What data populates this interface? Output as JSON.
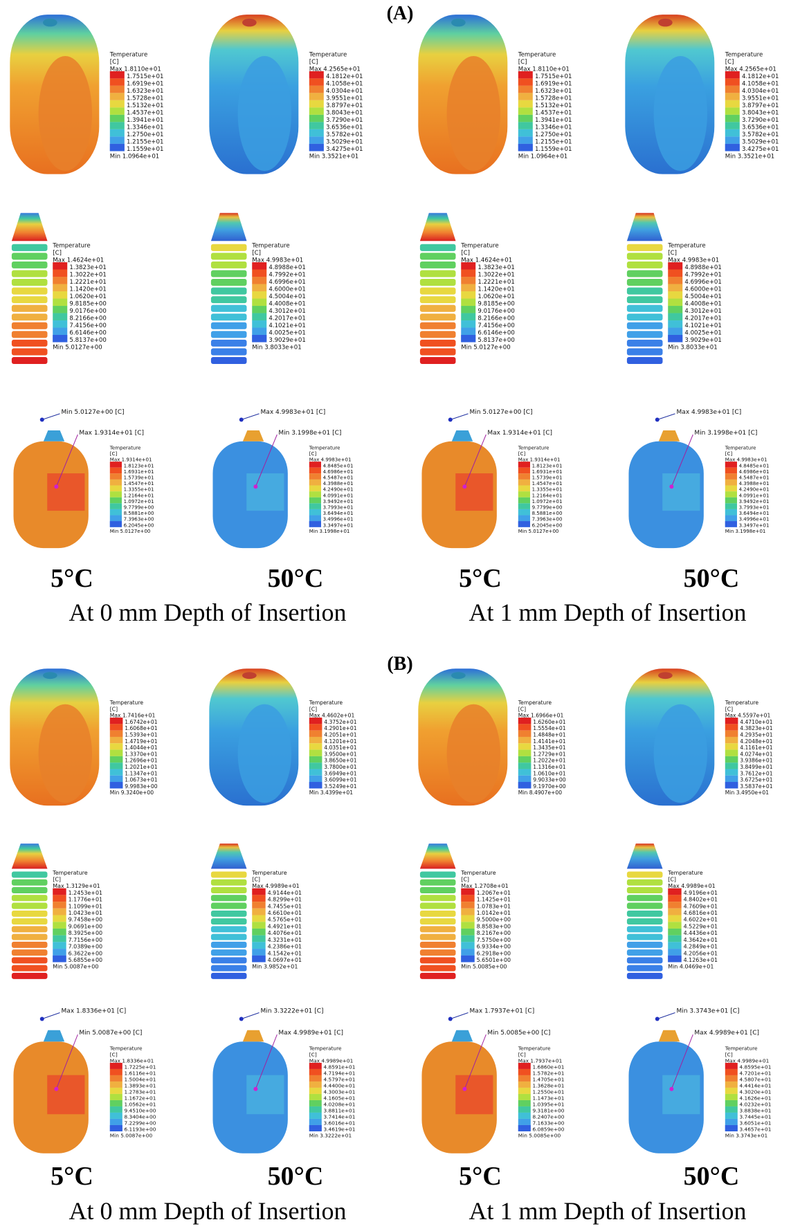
{
  "sections": [
    {
      "label": "(A)",
      "temps": [
        "5°C",
        "50°C",
        "5°C",
        "50°C"
      ],
      "depths": [
        "At 0 mm Depth of Insertion",
        "At 1 mm Depth of Insertion"
      ],
      "panels": [
        {
          "shape": "block",
          "legend": {
            "title": "Temperature",
            "unit": "[C]",
            "max": "Max 1.8110e+01",
            "values": [
              "1.7515e+01",
              "1.6919e+01",
              "1.6323e+01",
              "1.5728e+01",
              "1.5132e+01",
              "1.4537e+01",
              "1.3941e+01",
              "1.3346e+01",
              "1.2750e+01",
              "1.2155e+01",
              "1.1559e+01"
            ],
            "min": "Min 1.0964e+01"
          }
        },
        {
          "shape": "block",
          "legend": {
            "title": "Temperature",
            "unit": "[C]",
            "max": "Max 4.2565e+01",
            "values": [
              "4.1812e+01",
              "4.1058e+01",
              "4.0304e+01",
              "3.9551e+01",
              "3.8797e+01",
              "3.8043e+01",
              "3.7290e+01",
              "3.6536e+01",
              "3.5782e+01",
              "3.5029e+01",
              "3.4275e+01"
            ],
            "min": "Min 3.3521e+01"
          }
        },
        {
          "shape": "block",
          "legend": {
            "title": "Temperature",
            "unit": "[C]",
            "max": "Max 1.8110e+01",
            "values": [
              "1.7515e+01",
              "1.6919e+01",
              "1.6323e+01",
              "1.5728e+01",
              "1.5132e+01",
              "1.4537e+01",
              "1.3941e+01",
              "1.3346e+01",
              "1.2750e+01",
              "1.2155e+01",
              "1.1559e+01"
            ],
            "min": "Min 1.0964e+01"
          }
        },
        {
          "shape": "block",
          "legend": {
            "title": "Temperature",
            "unit": "[C]",
            "max": "Max 4.2565e+01",
            "values": [
              "4.1812e+01",
              "4.1058e+01",
              "4.0304e+01",
              "3.9551e+01",
              "3.8797e+01",
              "3.8043e+01",
              "3.7290e+01",
              "3.6536e+01",
              "3.5782e+01",
              "3.5029e+01",
              "3.4275e+01"
            ],
            "min": "Min 3.3521e+01"
          }
        },
        {
          "shape": "implant",
          "legend": {
            "title": "Temperature",
            "unit": "[C]",
            "max": "Max 1.4624e+01",
            "values": [
              "1.3823e+01",
              "1.3022e+01",
              "1.2221e+01",
              "1.1420e+01",
              "1.0620e+01",
              "9.8185e+00",
              "9.0176e+00",
              "8.2166e+00",
              "7.4156e+00",
              "6.6146e+00",
              "5.8137e+00"
            ],
            "min": "Min 5.0127e+00"
          }
        },
        {
          "shape": "implant",
          "legend": {
            "title": "Temperature",
            "unit": "[C]",
            "max": "Max 4.9983e+01",
            "values": [
              "4.8988e+01",
              "4.7992e+01",
              "4.6996e+01",
              "4.6000e+01",
              "4.5004e+01",
              "4.4008e+01",
              "4.3012e+01",
              "4.2017e+01",
              "4.1021e+01",
              "4.0025e+01",
              "3.9029e+01"
            ],
            "min": "Min 3.8033e+01"
          }
        },
        {
          "shape": "implant",
          "legend": {
            "title": "Temperature",
            "unit": "[C]",
            "max": "Max 1.4624e+01",
            "values": [
              "1.3823e+01",
              "1.3022e+01",
              "1.2221e+01",
              "1.1420e+01",
              "1.0620e+01",
              "9.8185e+00",
              "9.0176e+00",
              "8.2166e+00",
              "7.4156e+00",
              "6.6146e+00",
              "5.8137e+00"
            ],
            "min": "Min 5.0127e+00"
          }
        },
        {
          "shape": "implant",
          "legend": {
            "title": "Temperature",
            "unit": "[C]",
            "max": "Max 4.9983e+01",
            "values": [
              "4.8988e+01",
              "4.7992e+01",
              "4.6996e+01",
              "4.6000e+01",
              "4.5004e+01",
              "4.4008e+01",
              "4.3012e+01",
              "4.2017e+01",
              "4.1021e+01",
              "4.0025e+01",
              "3.9029e+01"
            ],
            "min": "Min 3.8033e+01"
          }
        },
        {
          "shape": "assembly",
          "callouts": [
            "Min 5.0127e+00 [C]",
            "Max 1.9314e+01 [C]"
          ],
          "legend": {
            "title": "Temperature",
            "unit": "[C]",
            "max": "Max 1.9314e+01",
            "values": [
              "1.8123e+01",
              "1.6931e+01",
              "1.5739e+01",
              "1.4547e+01",
              "1.3355e+01",
              "1.2164e+01",
              "1.0972e+01",
              "9.7799e+00",
              "8.5881e+00",
              "7.3963e+00",
              "6.2045e+00"
            ],
            "min": "Min 5.0127e+00"
          }
        },
        {
          "shape": "assembly",
          "callouts": [
            "Max 4.9983e+01 [C]",
            "Min 3.1998e+01 [C]"
          ],
          "legend": {
            "title": "Temperature",
            "unit": "[C]",
            "max": "Max 4.9983e+01",
            "values": [
              "4.8485e+01",
              "4.6986e+01",
              "4.5487e+01",
              "4.3988e+01",
              "4.2490e+01",
              "4.0991e+01",
              "3.9492e+01",
              "3.7993e+01",
              "3.6494e+01",
              "3.4996e+01",
              "3.3497e+01"
            ],
            "min": "Min 3.1998e+01"
          }
        },
        {
          "shape": "assembly",
          "callouts": [
            "Min 5.0127e+00 [C]",
            "Max 1.9314e+01 [C]"
          ],
          "legend": {
            "title": "Temperature",
            "unit": "[C]",
            "max": "Max 1.9314e+01",
            "values": [
              "1.8123e+01",
              "1.6931e+01",
              "1.5739e+01",
              "1.4547e+01",
              "1.3355e+01",
              "1.2164e+01",
              "1.0972e+01",
              "9.7799e+00",
              "8.5881e+00",
              "7.3963e+00",
              "6.2045e+00"
            ],
            "min": "Min 5.0127e+00"
          }
        },
        {
          "shape": "assembly",
          "callouts": [
            "Max 4.9983e+01 [C]",
            "Min 3.1998e+01 [C]"
          ],
          "legend": {
            "title": "Temperature",
            "unit": "[C]",
            "max": "Max 4.9983e+01",
            "values": [
              "4.8485e+01",
              "4.6986e+01",
              "4.5487e+01",
              "4.3988e+01",
              "4.2490e+01",
              "4.0991e+01",
              "3.9492e+01",
              "3.7993e+01",
              "3.6494e+01",
              "3.4996e+01",
              "3.3497e+01"
            ],
            "min": "Min 3.1998e+01"
          }
        }
      ]
    },
    {
      "label": "(B)",
      "temps": [
        "5°C",
        "50°C",
        "5°C",
        "50°C"
      ],
      "depths": [
        "At 0 mm Depth of Insertion",
        "At 1 mm Depth of Insertion"
      ],
      "panels": [
        {
          "shape": "block",
          "legend": {
            "title": "Temperature",
            "unit": "[C]",
            "max": "Max 1.7416e+01",
            "values": [
              "1.6742e+01",
              "1.6068e+01",
              "1.5393e+01",
              "1.4719e+01",
              "1.4044e+01",
              "1.3370e+01",
              "1.2696e+01",
              "1.2021e+01",
              "1.1347e+01",
              "1.0673e+01",
              "9.9983e+00"
            ],
            "min": "Min 9.3240e+00"
          }
        },
        {
          "shape": "block",
          "legend": {
            "title": "Temperature",
            "unit": "[C]",
            "max": "Max 4.4602e+01",
            "values": [
              "4.3752e+01",
              "4.2901e+01",
              "4.2051e+01",
              "4.1201e+01",
              "4.0351e+01",
              "3.9500e+01",
              "3.8650e+01",
              "3.7800e+01",
              "3.6949e+01",
              "3.6099e+01",
              "3.5249e+01"
            ],
            "min": "Min 3.4399e+01"
          }
        },
        {
          "shape": "block",
          "legend": {
            "title": "Temperature",
            "unit": "[C]",
            "max": "Max 1.6966e+01",
            "values": [
              "1.6260e+01",
              "1.5554e+01",
              "1.4848e+01",
              "1.4141e+01",
              "1.3435e+01",
              "1.2729e+01",
              "1.2022e+01",
              "1.1316e+01",
              "1.0610e+01",
              "9.9033e+00",
              "9.1970e+00"
            ],
            "min": "Min 8.4907e+00"
          }
        },
        {
          "shape": "block",
          "legend": {
            "title": "Temperature",
            "unit": "[C]",
            "max": "Max 4.5597e+01",
            "values": [
              "4.4710e+01",
              "4.3823e+01",
              "4.2935e+01",
              "4.2048e+01",
              "4.1161e+01",
              "4.0274e+01",
              "3.9386e+01",
              "3.8499e+01",
              "3.7612e+01",
              "3.6725e+01",
              "3.5837e+01"
            ],
            "min": "Min 3.4950e+01"
          }
        },
        {
          "shape": "implant",
          "legend": {
            "title": "Temperature",
            "unit": "[C]",
            "max": "Max 1.3129e+01",
            "values": [
              "1.2453e+01",
              "1.1776e+01",
              "1.1099e+01",
              "1.0423e+01",
              "9.7458e+00",
              "9.0691e+00",
              "8.3925e+00",
              "7.7156e+00",
              "7.0389e+00",
              "6.3622e+00",
              "5.6855e+00"
            ],
            "min": "Min 5.0087e+00"
          }
        },
        {
          "shape": "implant",
          "legend": {
            "title": "Temperature",
            "unit": "[C]",
            "max": "Max 4.9989e+01",
            "values": [
              "4.9144e+01",
              "4.8299e+01",
              "4.7455e+01",
              "4.6610e+01",
              "4.5765e+01",
              "4.4921e+01",
              "4.4076e+01",
              "4.3231e+01",
              "4.2386e+01",
              "4.1542e+01",
              "4.0697e+01"
            ],
            "min": "Min 3.9852e+01"
          }
        },
        {
          "shape": "implant",
          "legend": {
            "title": "Temperature",
            "unit": "[C]",
            "max": "Max 1.2708e+01",
            "values": [
              "1.2067e+01",
              "1.1425e+01",
              "1.0783e+01",
              "1.0142e+01",
              "9.5000e+00",
              "8.8583e+00",
              "8.2167e+00",
              "7.5750e+00",
              "6.9334e+00",
              "6.2918e+00",
              "5.6501e+00"
            ],
            "min": "Min 5.0085e+00"
          }
        },
        {
          "shape": "implant",
          "legend": {
            "title": "Temperature",
            "unit": "[C]",
            "max": "Max 4.9989e+01",
            "values": [
              "4.9196e+01",
              "4.8402e+01",
              "4.7609e+01",
              "4.6816e+01",
              "4.6022e+01",
              "4.5229e+01",
              "4.4436e+01",
              "4.3642e+01",
              "4.2849e+01",
              "4.2056e+01",
              "4.1263e+01"
            ],
            "min": "Min 4.0469e+01"
          }
        },
        {
          "shape": "assembly",
          "callouts": [
            "Max 1.8336e+01 [C]",
            "Min 5.0087e+00 [C]"
          ],
          "legend": {
            "title": "Temperature",
            "unit": "[C]",
            "max": "Max 1.8336e+01",
            "values": [
              "1.7225e+01",
              "1.6116e+01",
              "1.5004e+01",
              "1.3893e+01",
              "1.2783e+01",
              "1.1672e+01",
              "1.0562e+01",
              "9.4510e+00",
              "8.3404e+00",
              "7.2299e+00",
              "6.1193e+00"
            ],
            "min": "Min 5.0087e+00"
          }
        },
        {
          "shape": "assembly",
          "callouts": [
            "Min 3.3222e+01 [C]",
            "Max 4.9989e+01 [C]"
          ],
          "legend": {
            "title": "Temperature",
            "unit": "[C]",
            "max": "Max 4.9989e+01",
            "values": [
              "4.8591e+01",
              "4.7194e+01",
              "4.5797e+01",
              "4.4400e+01",
              "4.3003e+01",
              "4.1605e+01",
              "4.0208e+01",
              "3.8811e+01",
              "3.7414e+01",
              "3.6016e+01",
              "3.4619e+01"
            ],
            "min": "Min 3.3222e+01"
          }
        },
        {
          "shape": "assembly",
          "callouts": [
            "Max 1.7937e+01 [C]",
            "Min 5.0085e+00 [C]"
          ],
          "legend": {
            "title": "Temperature",
            "unit": "[C]",
            "max": "Max 1.7937e+01",
            "values": [
              "1.6860e+01",
              "1.5782e+01",
              "1.4705e+01",
              "1.3628e+01",
              "1.2550e+01",
              "1.1473e+01",
              "1.0395e+01",
              "9.3181e+00",
              "8.2407e+00",
              "7.1633e+00",
              "6.0859e+00"
            ],
            "min": "Min 5.0085e+00"
          }
        },
        {
          "shape": "assembly",
          "callouts": [
            "Min 3.3743e+01 [C]",
            "Max 4.9989e+01 [C]"
          ],
          "legend": {
            "title": "Temperature",
            "unit": "[C]",
            "max": "Max 4.9989e+01",
            "values": [
              "4.8595e+01",
              "4.7201e+01",
              "4.5807e+01",
              "4.4414e+01",
              "4.3020e+01",
              "4.1626e+01",
              "4.0232e+01",
              "3.8838e+01",
              "3.7445e+01",
              "3.6051e+01",
              "3.4657e+01"
            ],
            "min": "Min 3.3743e+01"
          }
        }
      ]
    }
  ]
}
